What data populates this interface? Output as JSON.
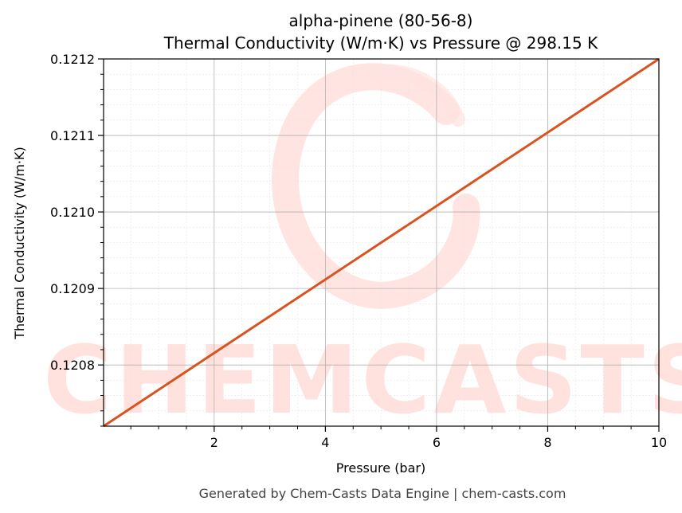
{
  "chart_data": {
    "type": "line",
    "title": "alpha-pinene (80-56-8)",
    "subtitle": "Thermal Conductivity (W/m·K) vs Pressure @ 298.15 K",
    "xlabel": "Pressure (bar)",
    "ylabel": "Thermal Conductivity (W/m·K)",
    "xlim": [
      0.01,
      10
    ],
    "ylim": [
      0.12072,
      0.1212
    ],
    "x_ticks": [
      2,
      4,
      6,
      8,
      10
    ],
    "x_tick_labels": [
      "2",
      "4",
      "6",
      "8",
      "10"
    ],
    "y_ticks": [
      0.1208,
      0.1209,
      0.121,
      0.1211,
      0.1212
    ],
    "y_tick_labels": [
      "0.1208",
      "0.1209",
      "0.1210",
      "0.1211",
      "0.1212"
    ],
    "grid": true,
    "series": [
      {
        "color": "#d9531e",
        "x": [
          0.01,
          10
        ],
        "y": [
          0.12072,
          0.1212
        ]
      }
    ]
  },
  "watermark": {
    "text": "CHEMCASTS",
    "color": "#ffd9d4"
  },
  "footer": "Generated by Chem-Casts Data Engine | chem-casts.com"
}
